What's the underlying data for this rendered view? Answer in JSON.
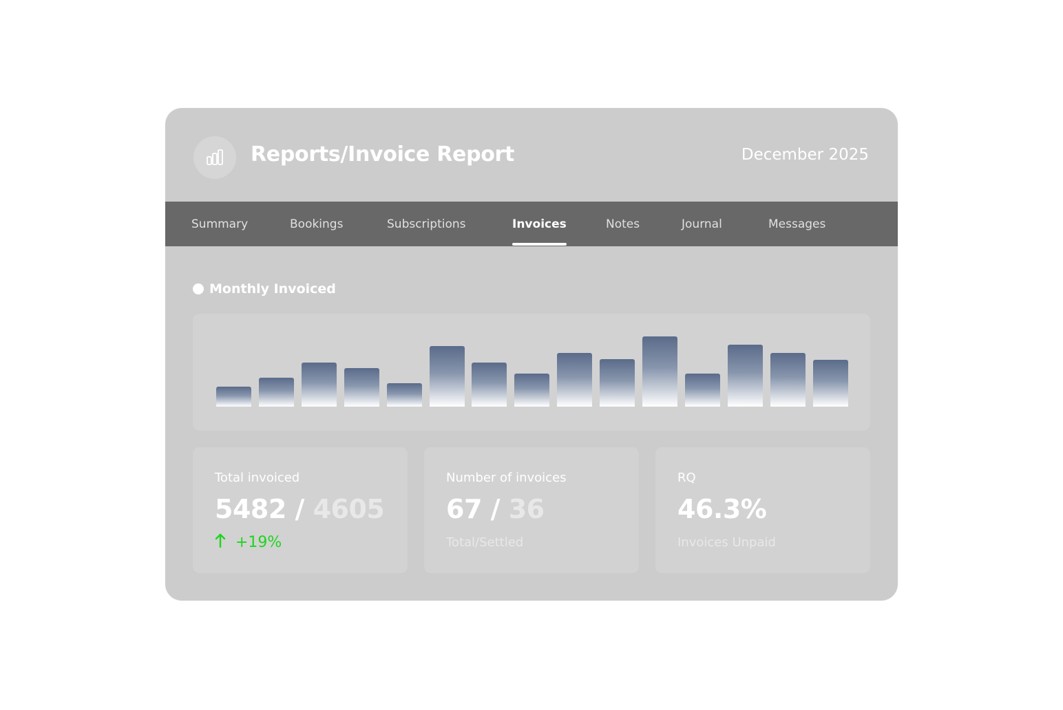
{
  "header": {
    "title": "Reports/Invoice Report",
    "date": "December 2025",
    "logo_icon": "bar-chart-icon"
  },
  "tabs": [
    {
      "label": "Summary",
      "active": false
    },
    {
      "label": "Bookings",
      "active": false
    },
    {
      "label": "Subscriptions",
      "active": false
    },
    {
      "label": "Invoices",
      "active": true
    },
    {
      "label": "Notes",
      "active": false
    },
    {
      "label": "Journal",
      "active": false
    },
    {
      "label": "Messages",
      "active": false
    }
  ],
  "chart_section": {
    "label": "Monthly Invoiced"
  },
  "chart_data": {
    "type": "bar",
    "title": "Monthly Invoiced",
    "values": [
      29,
      42,
      64,
      56,
      34,
      88,
      64,
      48,
      78,
      69,
      102,
      48,
      90,
      78,
      68
    ],
    "ylim": [
      0,
      102
    ],
    "xlabel": "",
    "ylabel": "",
    "grid": false,
    "bar_gradient": [
      "#5a6b8a",
      "#ffffff"
    ]
  },
  "stats": {
    "total_invoiced": {
      "label": "Total invoiced",
      "value_primary": "5482",
      "separator": " / ",
      "value_secondary": "4605",
      "delta": "+19%",
      "delta_icon": "arrow-up-icon",
      "delta_color": "#1ed41e"
    },
    "number_of_invoices": {
      "label": "Number of invoices",
      "value_primary": "67",
      "separator": " / ",
      "value_secondary": "36",
      "sub": "Total/Settled"
    },
    "rq": {
      "label": "RQ",
      "value": "46.3%",
      "sub": "Invoices Unpaid"
    }
  },
  "colors": {
    "card_bg": "#cccccc",
    "tab_bar_bg": "#686868",
    "panel_bg": "#d2d2d2",
    "positive": "#1ed41e"
  }
}
